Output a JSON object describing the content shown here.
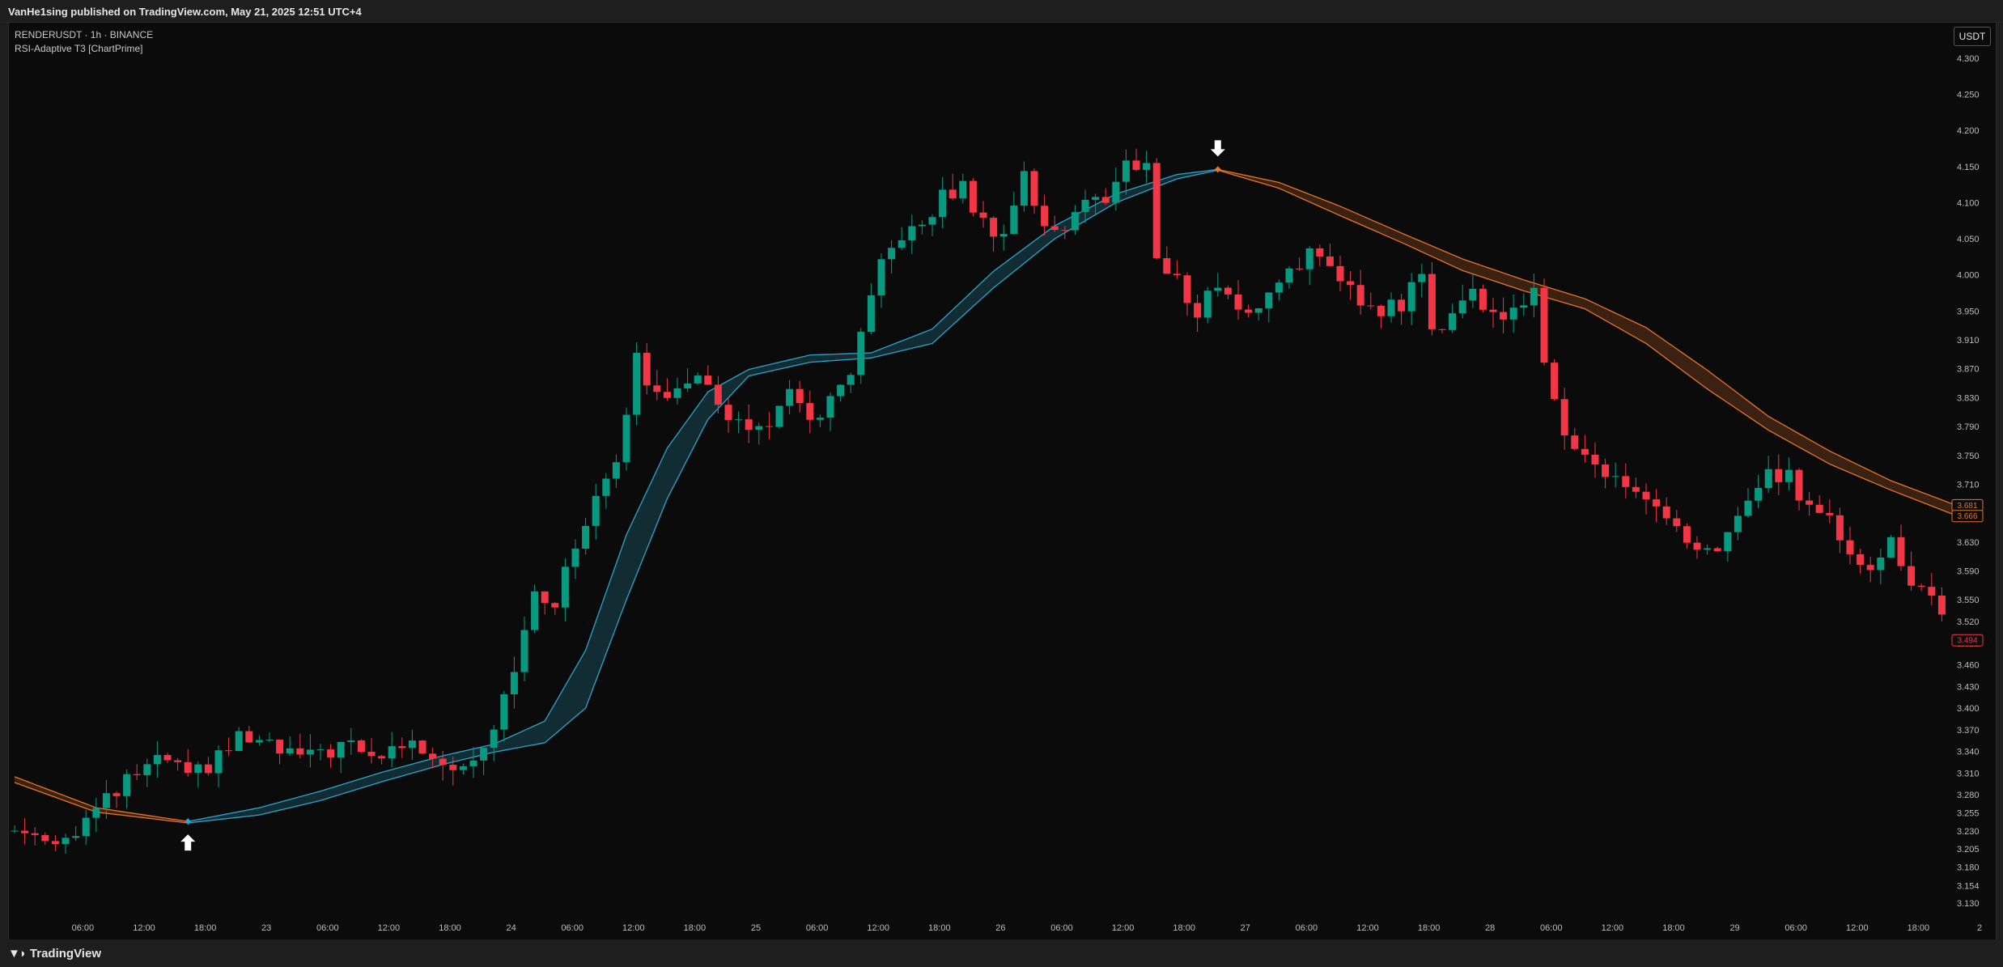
{
  "header": {
    "publish_line": "VanHe1sing published on TradingView.com, May 21, 2025 12:51 UTC+4"
  },
  "legend": {
    "symbol_line": "RENDERUSDT · 1h · BINANCE",
    "indicator_line": "RSI-Adaptive T3 [ChartPrime]"
  },
  "currency_button": "USDT",
  "footer": {
    "logo_text": "TradingView"
  },
  "colors": {
    "background": "#0b0b0b",
    "bull": "#089981",
    "bear": "#f23645",
    "band_up": "#2ea3c9",
    "band_down": "#e8732a",
    "signal_arrow": "#ffffff"
  },
  "chart_data": {
    "type": "candlestick",
    "symbol": "RENDERUSDT",
    "interval": "1h",
    "exchange": "BINANCE",
    "ylim": [
      3.11,
      4.33
    ],
    "y_ticks": [
      "4.300",
      "4.250",
      "4.200",
      "4.150",
      "4.100",
      "4.050",
      "4.000",
      "3.950",
      "3.910",
      "3.870",
      "3.830",
      "3.790",
      "3.750",
      "3.710",
      "3.670",
      "3.630",
      "3.590",
      "3.550",
      "3.520",
      "3.490",
      "3.460",
      "3.430",
      "3.400",
      "3.370",
      "3.340",
      "3.310",
      "3.280",
      "3.255",
      "3.230",
      "3.205",
      "3.180",
      "3.154",
      "3.130"
    ],
    "x_ticks": [
      {
        "label": "06:00",
        "index": 4
      },
      {
        "label": "12:00",
        "index": 10
      },
      {
        "label": "18:00",
        "index": 16
      },
      {
        "label": "23",
        "index": 22
      },
      {
        "label": "06:00",
        "index": 28
      },
      {
        "label": "12:00",
        "index": 34
      },
      {
        "label": "18:00",
        "index": 40
      },
      {
        "label": "24",
        "index": 46
      },
      {
        "label": "06:00",
        "index": 52
      },
      {
        "label": "12:00",
        "index": 58
      },
      {
        "label": "18:00",
        "index": 64
      },
      {
        "label": "25",
        "index": 70
      },
      {
        "label": "06:00",
        "index": 76
      },
      {
        "label": "12:00",
        "index": 82
      },
      {
        "label": "18:00",
        "index": 88
      },
      {
        "label": "26",
        "index": 94
      },
      {
        "label": "06:00",
        "index": 100
      },
      {
        "label": "12:00",
        "index": 106
      },
      {
        "label": "18:00",
        "index": 112
      },
      {
        "label": "27",
        "index": 118
      },
      {
        "label": "06:00",
        "index": 124
      },
      {
        "label": "12:00",
        "index": 130
      },
      {
        "label": "18:00",
        "index": 136
      },
      {
        "label": "28",
        "index": 142
      },
      {
        "label": "06:00",
        "index": 148
      },
      {
        "label": "12:00",
        "index": 154
      },
      {
        "label": "18:00",
        "index": 160
      },
      {
        "label": "29",
        "index": 166
      },
      {
        "label": "06:00",
        "index": 172
      },
      {
        "label": "12:00",
        "index": 178
      },
      {
        "label": "18:00",
        "index": 184
      },
      {
        "label": "2",
        "index": 190
      }
    ],
    "close_keypoints": [
      [
        0,
        3.23
      ],
      [
        5,
        3.22
      ],
      [
        9,
        3.27
      ],
      [
        12,
        3.31
      ],
      [
        15,
        3.33
      ],
      [
        17,
        3.3
      ],
      [
        20,
        3.33
      ],
      [
        22,
        3.36
      ],
      [
        26,
        3.34
      ],
      [
        29,
        3.33
      ],
      [
        32,
        3.35
      ],
      [
        35,
        3.33
      ],
      [
        38,
        3.35
      ],
      [
        41,
        3.34
      ],
      [
        43,
        3.32
      ],
      [
        45,
        3.33
      ],
      [
        47,
        3.38
      ],
      [
        49,
        3.46
      ],
      [
        51,
        3.55
      ],
      [
        53,
        3.55
      ],
      [
        55,
        3.62
      ],
      [
        57,
        3.7
      ],
      [
        59,
        3.75
      ],
      [
        61,
        3.88
      ],
      [
        63,
        3.83
      ],
      [
        66,
        3.86
      ],
      [
        68,
        3.84
      ],
      [
        70,
        3.81
      ],
      [
        72,
        3.78
      ],
      [
        74,
        3.8
      ],
      [
        76,
        3.83
      ],
      [
        78,
        3.8
      ],
      [
        80,
        3.82
      ],
      [
        82,
        3.86
      ],
      [
        84,
        3.96
      ],
      [
        85,
        4.01
      ],
      [
        87,
        4.06
      ],
      [
        89,
        4.06
      ],
      [
        91,
        4.11
      ],
      [
        93,
        4.12
      ],
      [
        95,
        4.07
      ],
      [
        97,
        4.06
      ],
      [
        99,
        4.14
      ],
      [
        101,
        4.06
      ],
      [
        103,
        4.07
      ],
      [
        105,
        4.11
      ],
      [
        107,
        4.1
      ],
      [
        109,
        4.15
      ],
      [
        111,
        4.16
      ],
      [
        112,
        4.02
      ],
      [
        114,
        3.99
      ],
      [
        116,
        3.95
      ],
      [
        118,
        3.99
      ],
      [
        121,
        3.94
      ],
      [
        123,
        3.98
      ],
      [
        125,
        4.01
      ],
      [
        127,
        4.03
      ],
      [
        129,
        4.0
      ],
      [
        131,
        3.99
      ],
      [
        133,
        3.95
      ],
      [
        136,
        3.96
      ],
      [
        138,
        4.0
      ],
      [
        139,
        3.92
      ],
      [
        141,
        3.95
      ],
      [
        143,
        3.98
      ],
      [
        145,
        3.94
      ],
      [
        147,
        3.96
      ],
      [
        149,
        3.97
      ],
      [
        150,
        3.87
      ],
      [
        152,
        3.79
      ],
      [
        154,
        3.75
      ],
      [
        156,
        3.72
      ],
      [
        158,
        3.71
      ],
      [
        160,
        3.69
      ],
      [
        162,
        3.66
      ],
      [
        164,
        3.62
      ],
      [
        166,
        3.61
      ],
      [
        168,
        3.64
      ],
      [
        170,
        3.69
      ],
      [
        172,
        3.72
      ],
      [
        174,
        3.72
      ],
      [
        176,
        3.68
      ],
      [
        178,
        3.66
      ],
      [
        180,
        3.62
      ],
      [
        182,
        3.6
      ],
      [
        184,
        3.63
      ],
      [
        186,
        3.57
      ],
      [
        188,
        3.55
      ],
      [
        190,
        3.52
      ],
      [
        192,
        3.49
      ]
    ],
    "series": [
      {
        "name": "RSI-Adaptive T3 (upper)",
        "keypoints": [
          [
            0,
            3.305
          ],
          [
            8,
            3.262
          ],
          [
            17,
            3.243
          ],
          [
            24,
            3.262
          ],
          [
            30,
            3.285
          ],
          [
            36,
            3.311
          ],
          [
            42,
            3.334
          ],
          [
            47,
            3.35
          ],
          [
            52,
            3.382
          ],
          [
            56,
            3.48
          ],
          [
            60,
            3.64
          ],
          [
            64,
            3.76
          ],
          [
            68,
            3.838
          ],
          [
            72,
            3.869
          ],
          [
            78,
            3.889
          ],
          [
            84,
            3.892
          ],
          [
            90,
            3.925
          ],
          [
            96,
            4.005
          ],
          [
            102,
            4.068
          ],
          [
            108,
            4.112
          ],
          [
            114,
            4.139
          ],
          [
            118,
            4.146
          ],
          [
            124,
            4.128
          ],
          [
            130,
            4.095
          ],
          [
            136,
            4.058
          ],
          [
            142,
            4.022
          ],
          [
            148,
            3.993
          ],
          [
            154,
            3.967
          ],
          [
            160,
            3.927
          ],
          [
            166,
            3.868
          ],
          [
            172,
            3.804
          ],
          [
            178,
            3.756
          ],
          [
            184,
            3.715
          ],
          [
            190,
            3.683
          ]
        ]
      },
      {
        "name": "RSI-Adaptive T3 (lower)",
        "keypoints": [
          [
            0,
            3.297
          ],
          [
            8,
            3.256
          ],
          [
            17,
            3.241
          ],
          [
            24,
            3.252
          ],
          [
            30,
            3.272
          ],
          [
            36,
            3.298
          ],
          [
            42,
            3.322
          ],
          [
            47,
            3.339
          ],
          [
            52,
            3.352
          ],
          [
            56,
            3.4
          ],
          [
            60,
            3.55
          ],
          [
            64,
            3.69
          ],
          [
            68,
            3.8
          ],
          [
            72,
            3.86
          ],
          [
            78,
            3.879
          ],
          [
            84,
            3.885
          ],
          [
            90,
            3.905
          ],
          [
            96,
            3.982
          ],
          [
            102,
            4.05
          ],
          [
            108,
            4.1
          ],
          [
            114,
            4.133
          ],
          [
            118,
            4.145
          ],
          [
            124,
            4.12
          ],
          [
            130,
            4.082
          ],
          [
            136,
            4.045
          ],
          [
            142,
            4.006
          ],
          [
            148,
            3.978
          ],
          [
            154,
            3.953
          ],
          [
            160,
            3.905
          ],
          [
            166,
            3.842
          ],
          [
            172,
            3.785
          ],
          [
            178,
            3.738
          ],
          [
            184,
            3.702
          ],
          [
            190,
            3.669
          ]
        ]
      }
    ],
    "band_color_switch": {
      "up_from_index": 17,
      "down_from_index": 118
    },
    "signals": [
      {
        "type": "buy",
        "index": 17,
        "price": 3.243
      },
      {
        "type": "sell",
        "index": 118,
        "price": 4.146
      }
    ],
    "price_labels": [
      {
        "value": "3.681",
        "color": "#e8732a",
        "price": 3.681
      },
      {
        "value": "3.666",
        "color": "#e8732a",
        "price": 3.666
      },
      {
        "value": "3.494",
        "color": "#f23645",
        "price": 3.494
      }
    ]
  }
}
